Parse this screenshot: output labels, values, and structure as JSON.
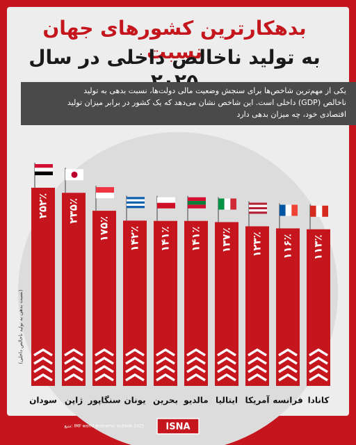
{
  "title_line1": "بدهکارترین کشورهای جهان نسبت",
  "title_line2": "به تولید ناخالص داخلی در سال ۲۰۲۵",
  "description": "یکی از مهم‌ترین شاخص‌ها برای سنجش وضعیت مالی دولت‌ها، نسبت بدهی به تولید ناخالص (GDP) داخلی است. این شاخص نشان می‌دهد که یک کشور در برابر میزان تولید اقتصادی خود، چه میزان بدهی دارد",
  "chart_data": {
    "type": "bar",
    "note": "(نسبت بدهی به تولید ناخالص داخلی)",
    "categories": [
      "سودان",
      "ژاپن",
      "سنگاپور",
      "یونان",
      "بحرین",
      "مالدیو",
      "ایتالیا",
      "آمریکا",
      "فرانسه",
      "کانادا"
    ],
    "values": [
      252,
      235,
      175,
      142,
      141,
      141,
      137,
      123,
      116,
      113
    ],
    "value_labels": [
      "۲۵۲٪",
      "۲۳۵٪",
      "۱۷۵٪",
      "۱۴۲٪",
      "۱۴۱٪",
      "۱۴۱٪",
      "۱۳۷٪",
      "۱۲۳٪",
      "۱۱۶٪",
      "۱۱۳٪"
    ],
    "color": "#c4161c"
  },
  "source": "منبع: IMF world economic outlook 2025",
  "brand": "ISNA"
}
